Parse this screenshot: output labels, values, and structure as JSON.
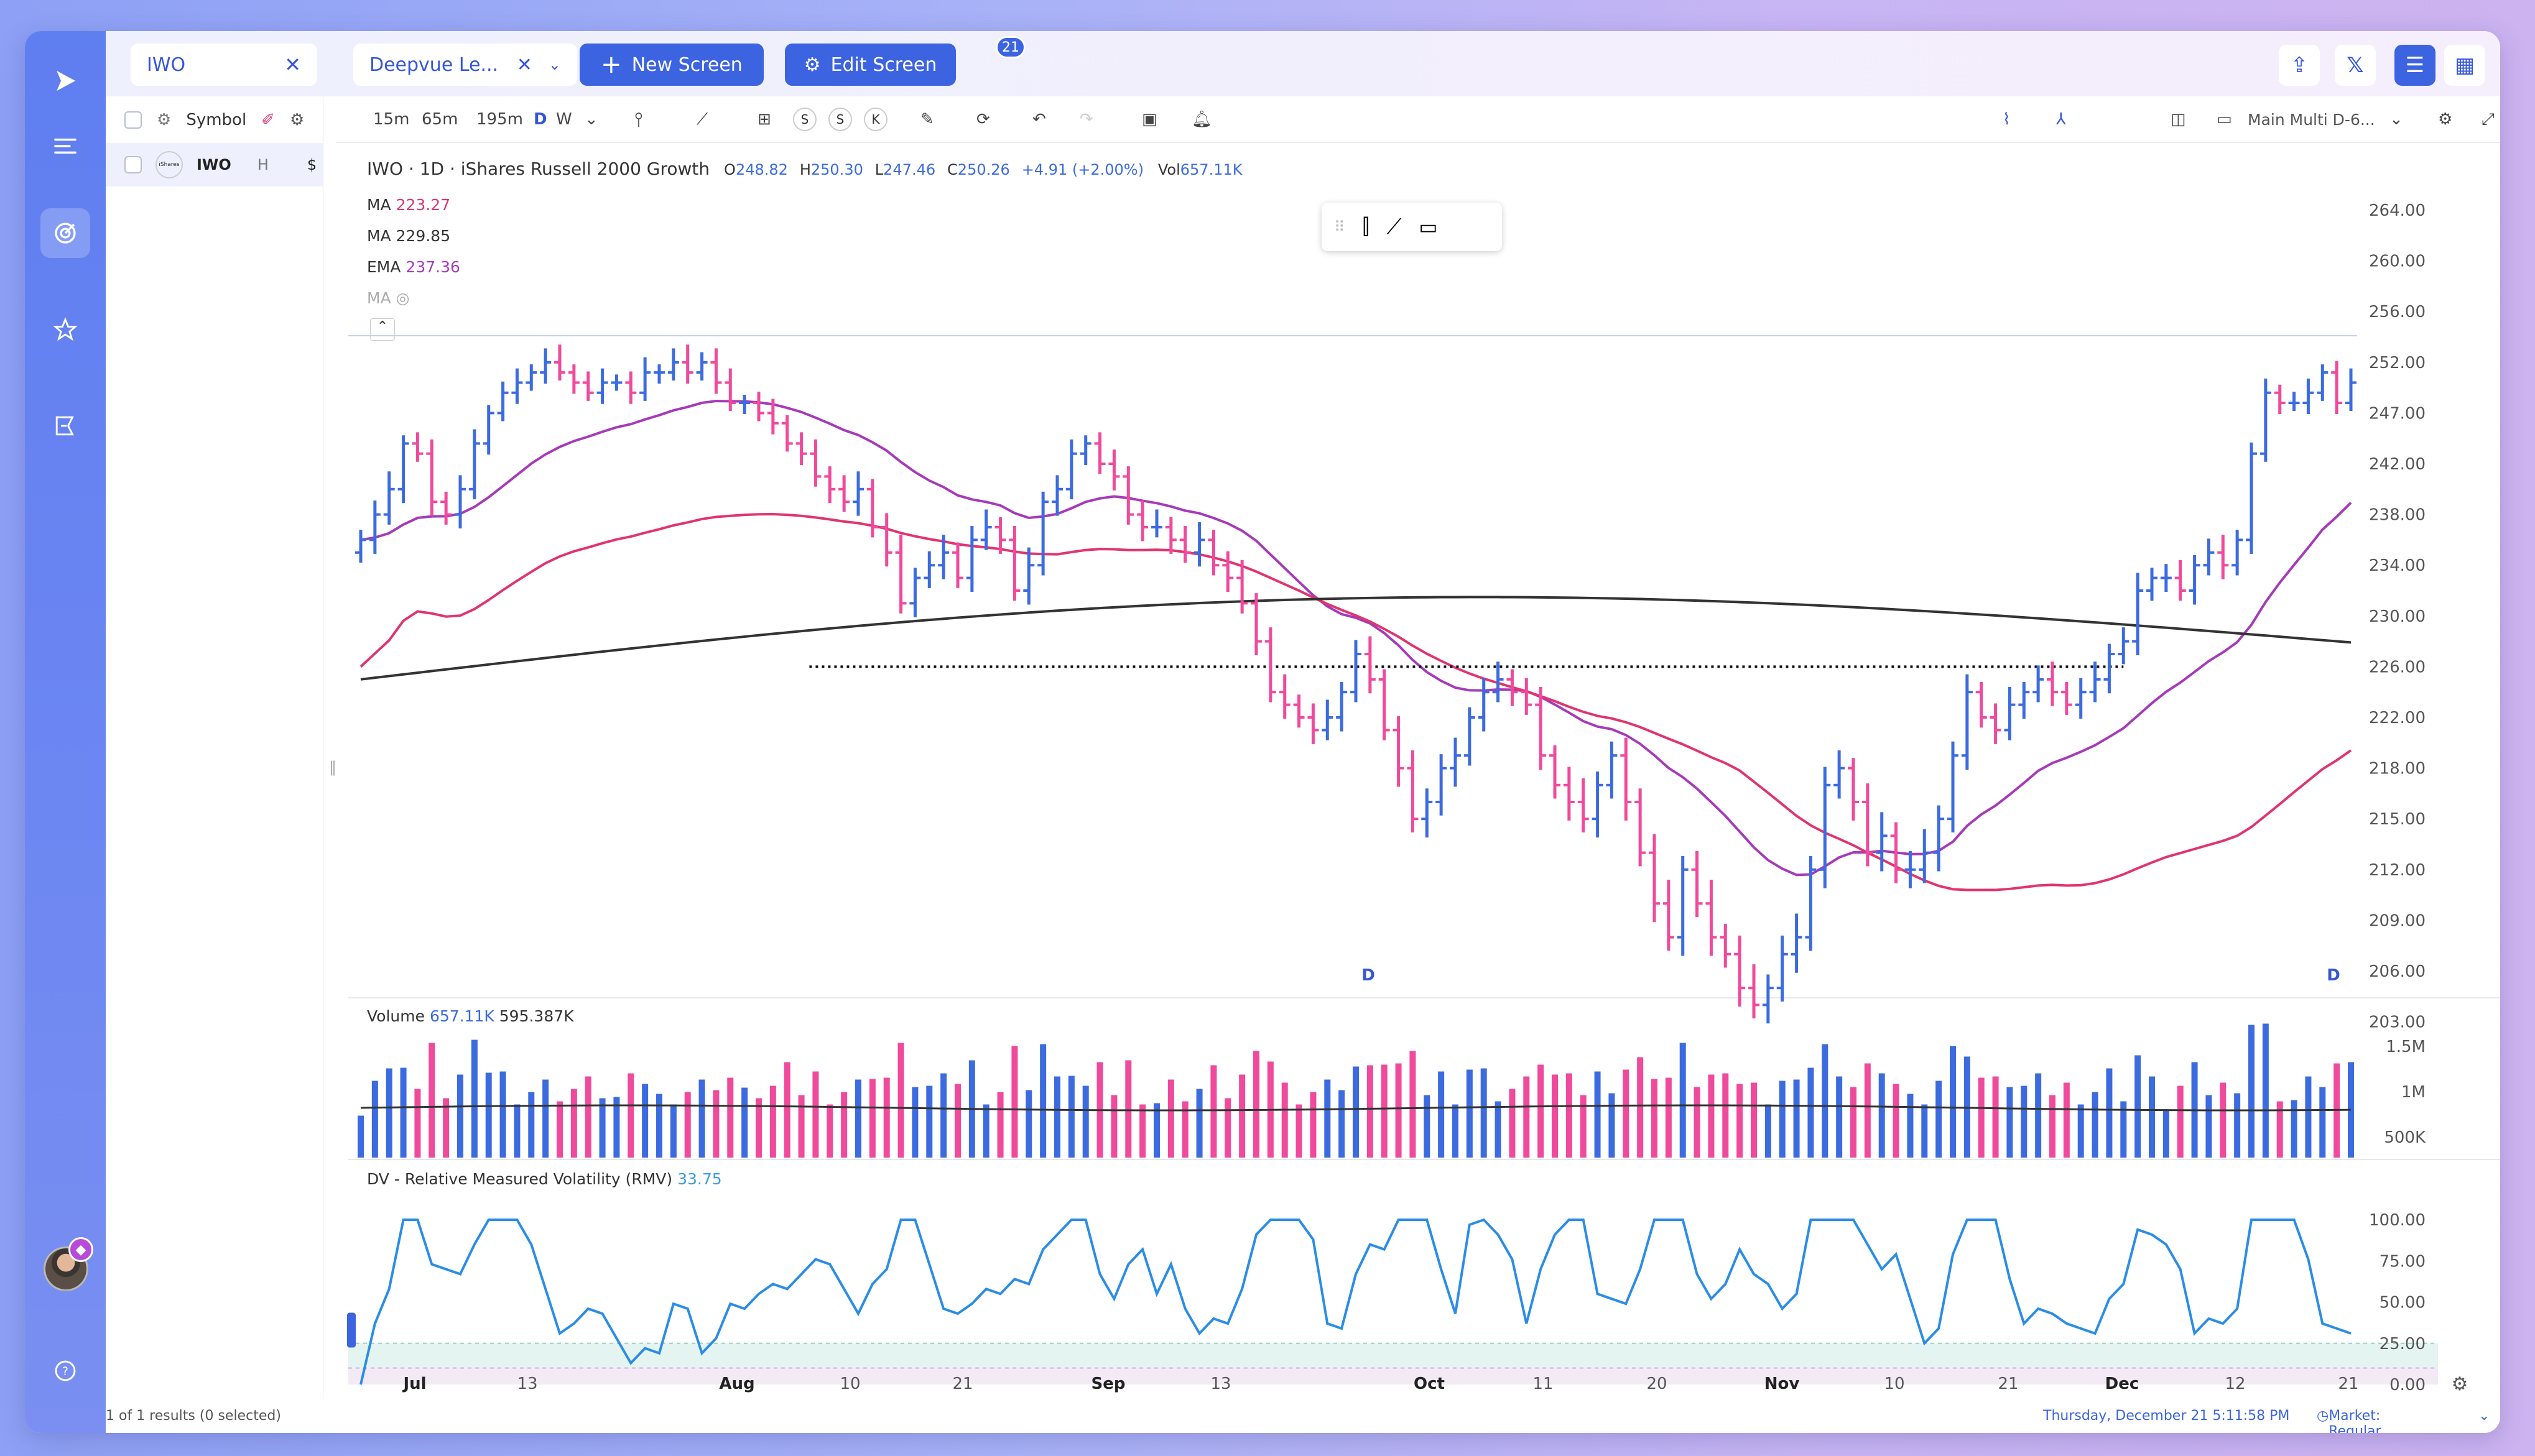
{
  "tabs": {
    "symbol_tab": "IWO",
    "screen_tab": "Deepvue Le...",
    "new_screen": "New Screen",
    "edit_screen": "Edit Screen",
    "edit_badge": "21"
  },
  "watchlist": {
    "header_label": "Symbol",
    "rows": [
      {
        "symbol": "IWO",
        "flag": "H",
        "price": "$",
        "logo": "iShares"
      }
    ]
  },
  "toolbar": {
    "intervals": [
      "15m",
      "65m",
      "195m",
      "D",
      "W"
    ],
    "active_interval": "D",
    "toggles": [
      "S",
      "S",
      "K"
    ],
    "layout_name": "Main Multi D-6..."
  },
  "chart": {
    "title": "IWO · 1D · iShares Russell 2000 Growth",
    "ohlc": {
      "O": "248.82",
      "H": "250.30",
      "L": "247.46",
      "C": "250.26",
      "change": "+4.91 (+2.00%)",
      "vol_label": "Vol",
      "vol": "657.11K"
    },
    "indicators": [
      {
        "name": "MA",
        "value": "223.27",
        "color": "#e0356f"
      },
      {
        "name": "MA",
        "value": "229.85",
        "color": "#333333"
      },
      {
        "name": "EMA",
        "value": "237.36",
        "color": "#a63ab9"
      },
      {
        "name": "MA",
        "value": "",
        "color": "#999999"
      }
    ],
    "price_ticks": [
      "264.00",
      "260.00",
      "256.00",
      "252.00",
      "247.00",
      "242.00",
      "238.00",
      "234.00",
      "230.00",
      "226.00",
      "222.00",
      "218.00",
      "215.00",
      "212.00",
      "209.00",
      "206.00",
      "203.00"
    ],
    "d_markers": [
      "D",
      "D"
    ],
    "volume_label": "Volume",
    "volume_value": "657.11K",
    "volume_avg": "595.387K",
    "volume_ticks": [
      "1.5M",
      "1M",
      "500K"
    ],
    "rmv_label": "DV - Relative Measured Volatility (RMV)",
    "rmv_value": "33.75",
    "rmv_ticks": [
      "100.00",
      "75.00",
      "50.00",
      "25.00",
      "0.00"
    ],
    "x_ticks": [
      {
        "label": "Jul",
        "bold": true
      },
      {
        "label": "13",
        "bold": false
      },
      {
        "label": "Aug",
        "bold": true
      },
      {
        "label": "10",
        "bold": false
      },
      {
        "label": "21",
        "bold": false
      },
      {
        "label": "Sep",
        "bold": true
      },
      {
        "label": "13",
        "bold": false
      },
      {
        "label": "Oct",
        "bold": true
      },
      {
        "label": "11",
        "bold": false
      },
      {
        "label": "20",
        "bold": false
      },
      {
        "label": "Nov",
        "bold": true
      },
      {
        "label": "10",
        "bold": false
      },
      {
        "label": "21",
        "bold": false
      },
      {
        "label": "Dec",
        "bold": true
      },
      {
        "label": "12",
        "bold": false
      },
      {
        "label": "21",
        "bold": false
      }
    ]
  },
  "chart_data": {
    "type": "bar",
    "x_start": "2023-07-01",
    "ylim": [
      202,
      265
    ],
    "ohlc_series": "daily OHLC (blue = up, pink = down)",
    "closes": [
      236,
      238,
      240,
      244,
      243,
      239,
      238,
      240,
      244,
      247,
      249,
      250,
      251,
      252,
      251,
      250,
      249,
      250,
      250,
      249,
      251,
      251,
      252,
      251,
      252,
      250,
      248,
      248,
      247,
      246,
      244,
      243,
      241,
      240,
      239,
      240,
      237,
      235,
      231,
      233,
      234,
      235,
      233,
      236,
      237,
      236,
      232,
      234,
      239,
      240,
      243,
      244,
      242,
      241,
      238,
      237,
      237,
      236,
      235,
      236,
      234,
      233,
      231,
      228,
      224,
      223,
      222,
      221,
      222,
      224,
      227,
      225,
      221,
      218,
      215,
      216,
      218,
      219,
      222,
      224,
      225,
      224,
      223,
      219,
      217,
      216,
      215,
      217,
      219,
      216,
      213,
      210,
      208,
      212,
      210,
      208,
      207,
      205,
      204,
      205,
      207,
      208,
      212,
      217,
      218,
      216,
      213,
      214,
      212,
      212,
      213,
      215,
      219,
      224,
      222,
      221,
      223,
      224,
      225,
      224,
      223,
      224,
      225,
      227,
      228,
      232,
      233,
      233,
      232,
      234,
      235,
      234,
      236,
      243,
      249,
      248,
      248,
      249,
      251,
      248,
      250
    ],
    "ma_black": "long-term MA ~225 → ~230",
    "ma_pink": "MA 223.27",
    "ema_purple": "EMA 237.36",
    "volume_unit": "shares",
    "rmv_unit": "RMV 0-100"
  },
  "status": {
    "results": "1 of 1 results (0 selected)",
    "datetime": "Thursday, December 21  5:11:58   PM",
    "market": "Market: Regular Market"
  },
  "colors": {
    "accent": "#3c63e0",
    "up": "#3c6be0",
    "down": "#ef4a9c"
  }
}
